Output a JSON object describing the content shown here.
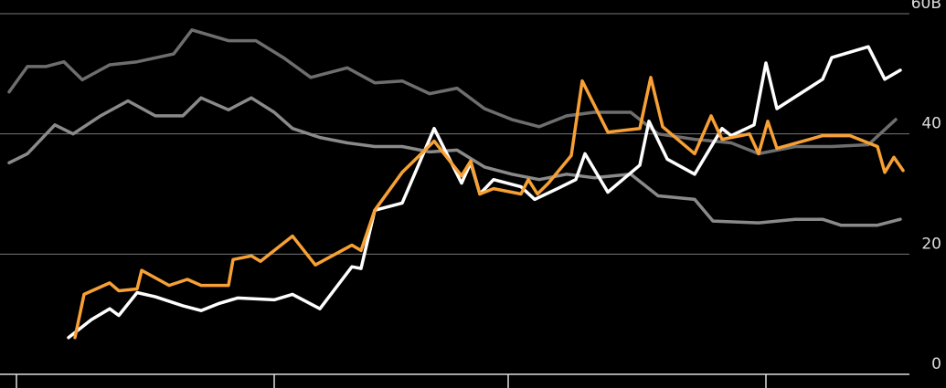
{
  "chart_data": {
    "type": "line",
    "xlim": [
      0,
      1035
    ],
    "xticks": [
      18,
      300,
      556,
      838
    ],
    "ylim": [
      0,
      60
    ],
    "yticks": [
      0,
      20,
      40,
      {
        "value": 60,
        "label": "60B"
      }
    ],
    "grid": true,
    "series": [
      {
        "color": "#6e6e6e",
        "x": [
          10,
          30,
          50,
          70,
          90,
          120,
          150,
          190,
          210,
          250,
          280,
          310,
          340,
          380,
          410,
          440,
          470,
          500,
          530,
          560,
          590,
          620,
          650,
          690,
          720,
          760,
          800,
          830,
          870,
          910,
          950,
          980
        ],
        "values": [
          47,
          51.2,
          51.2,
          52,
          49,
          51.5,
          52,
          53.3,
          57.3,
          55.5,
          55.5,
          52.7,
          49.4,
          51,
          48.5,
          48.8,
          46.7,
          47.6,
          44.2,
          42.4,
          41.2,
          43,
          43.6,
          43.6,
          40,
          39.1,
          38.5,
          36.7,
          37.9,
          37.9,
          38.2,
          42.4
        ]
      },
      {
        "color": "#8a8a8a",
        "x": [
          10,
          30,
          60,
          80,
          110,
          140,
          170,
          200,
          220,
          250,
          275,
          300,
          320,
          350,
          380,
          410,
          440,
          470,
          500,
          530,
          560,
          590,
          620,
          650,
          690,
          720,
          760,
          780,
          830,
          870,
          900,
          920,
          960,
          985
        ],
        "values": [
          35.2,
          36.7,
          41.5,
          40,
          43,
          45.5,
          43,
          43,
          46,
          44,
          46,
          43.6,
          40.9,
          39.4,
          38.5,
          37.9,
          37.9,
          37,
          37.3,
          34.5,
          33.3,
          32.4,
          33.3,
          32.7,
          33.3,
          29.7,
          29.1,
          25.5,
          25.2,
          25.8,
          25.8,
          24.8,
          24.8,
          25.8
        ]
      },
      {
        "color": "#ffffff",
        "x": [
          75,
          100,
          120,
          130,
          150,
          170,
          200,
          220,
          240,
          260,
          300,
          320,
          350,
          385,
          395,
          410,
          440,
          475,
          505,
          515,
          525,
          540,
          570,
          585,
          610,
          630,
          640,
          665,
          700,
          710,
          730,
          760,
          790,
          800,
          825,
          838,
          850,
          900,
          910,
          950,
          968,
          985
        ],
        "values": [
          6.1,
          9.1,
          10.9,
          9.8,
          13.6,
          12.9,
          11.4,
          10.6,
          11.8,
          12.7,
          12.4,
          13.3,
          10.9,
          17.9,
          17.6,
          27.3,
          28.5,
          40.9,
          31.8,
          35.2,
          30,
          32.4,
          31.2,
          29.1,
          30.9,
          32.4,
          36.7,
          30.3,
          34.8,
          42.1,
          35.8,
          33.3,
          40.9,
          39.7,
          41.5,
          51.8,
          44.2,
          49.1,
          52.7,
          54.5,
          49.1,
          50.6
        ]
      },
      {
        "color": "#f7a035",
        "x": [
          82,
          92,
          120,
          130,
          150,
          155,
          185,
          205,
          220,
          250,
          255,
          275,
          285,
          320,
          345,
          385,
          395,
          410,
          440,
          475,
          505,
          515,
          525,
          540,
          570,
          578,
          588,
          600,
          625,
          637,
          665,
          700,
          712,
          725,
          760,
          778,
          790,
          820,
          830,
          840,
          850,
          900,
          930,
          960,
          968,
          978,
          988
        ],
        "values": [
          6.1,
          13.3,
          15.2,
          13.9,
          14.2,
          17.3,
          14.8,
          15.8,
          14.8,
          14.8,
          19.1,
          19.7,
          18.8,
          23,
          18.2,
          21.5,
          20.6,
          27.3,
          33.6,
          38.8,
          33,
          35.5,
          30,
          30.9,
          30,
          32.4,
          30,
          31.8,
          36.4,
          48.8,
          40.3,
          40.9,
          49.4,
          41.2,
          36.7,
          43,
          39.1,
          40,
          36.7,
          42.1,
          37.6,
          39.7,
          39.7,
          37.9,
          33.6,
          36.1,
          33.9
        ]
      }
    ]
  }
}
